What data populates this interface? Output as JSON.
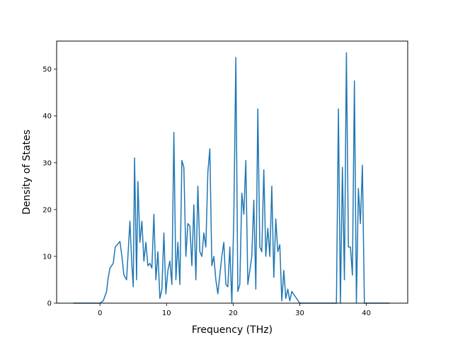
{
  "chart_data": {
    "type": "line",
    "title": "",
    "xlabel": "Frequency (THz)",
    "ylabel": "Density of States",
    "xlim": [
      -6.5,
      46.2
    ],
    "ylim": [
      0,
      56
    ],
    "xticks": [
      0,
      10,
      20,
      30,
      40
    ],
    "yticks": [
      0,
      10,
      20,
      30,
      40,
      50
    ],
    "grid": false,
    "line_color": "#1f77b4",
    "series": [
      {
        "x": [
          -4.0,
          0.0,
          0.5,
          1.0,
          1.2,
          1.5,
          2.0,
          2.3,
          2.6,
          3.0,
          3.3,
          3.6,
          4.0,
          4.2,
          4.5,
          4.8,
          5.0,
          5.2,
          5.5,
          5.7,
          6.0,
          6.3,
          6.6,
          6.9,
          7.2,
          7.5,
          7.8,
          8.1,
          8.4,
          8.7,
          9.0,
          9.3,
          9.6,
          9.9,
          10.2,
          10.5,
          10.8,
          11.1,
          11.4,
          11.7,
          12.0,
          12.3,
          12.6,
          12.9,
          13.2,
          13.5,
          13.8,
          14.1,
          14.4,
          14.7,
          15.0,
          15.3,
          15.6,
          15.9,
          16.2,
          16.5,
          16.8,
          17.1,
          17.4,
          17.7,
          18.0,
          18.3,
          18.6,
          18.9,
          19.2,
          19.5,
          19.8,
          20.1,
          20.4,
          20.7,
          21.0,
          21.3,
          21.6,
          21.9,
          22.2,
          22.5,
          22.8,
          23.1,
          23.4,
          23.7,
          24.0,
          24.3,
          24.6,
          24.9,
          25.2,
          25.5,
          25.8,
          26.1,
          26.4,
          26.7,
          27.0,
          27.3,
          27.6,
          27.9,
          28.2,
          28.5,
          28.8,
          30.0,
          35.0,
          35.5,
          35.8,
          36.1,
          36.4,
          36.7,
          37.0,
          37.3,
          37.6,
          37.9,
          38.2,
          38.5,
          38.8,
          39.1,
          39.4,
          39.7,
          40.0,
          41.0,
          43.5
        ],
        "values": [
          0,
          0,
          0.5,
          2.5,
          5,
          7.5,
          8.5,
          12,
          12.5,
          13.2,
          10,
          6,
          5,
          10,
          17.5,
          8,
          3.5,
          31,
          5,
          26,
          13,
          17.5,
          9,
          13,
          8,
          8.5,
          7.5,
          19,
          5,
          11,
          1,
          3,
          15,
          2,
          7,
          9,
          4,
          36.5,
          5,
          13,
          4,
          30.5,
          29,
          10,
          17,
          16.5,
          8,
          21,
          5,
          25,
          11,
          10,
          15,
          12,
          28,
          33,
          8,
          10,
          5,
          2,
          6,
          10,
          13,
          4,
          3.5,
          12,
          0,
          18.5,
          52.5,
          2.5,
          4,
          23.5,
          19,
          30.5,
          4,
          7,
          10,
          22,
          3,
          41.5,
          12,
          11,
          28.5,
          10,
          16,
          10,
          25,
          5.5,
          18,
          11,
          12.5,
          0.5,
          7,
          1,
          3,
          0.5,
          2.5,
          0,
          0,
          0,
          41.5,
          0,
          29,
          5,
          53.5,
          12,
          12,
          6,
          47.5,
          0,
          24.5,
          17,
          29.5,
          0,
          0,
          0,
          0
        ]
      }
    ]
  }
}
